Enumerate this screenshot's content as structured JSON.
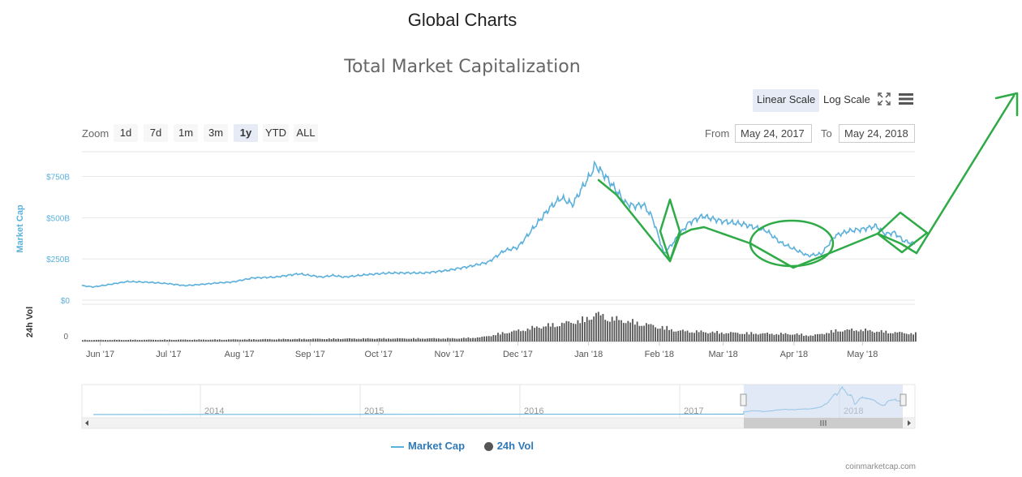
{
  "page": {
    "title": "Global Charts",
    "credits": "coinmarketcap.com"
  },
  "toolbar": {
    "linear_scale": "Linear Scale",
    "log_scale": "Log Scale",
    "zoom_label": "Zoom",
    "zoom_buttons": [
      "1d",
      "7d",
      "1m",
      "3m",
      "1y",
      "YTD",
      "ALL"
    ],
    "active_zoom": "1y",
    "from_label": "From",
    "from_value": "May 24, 2017",
    "to_label": "To",
    "to_value": "May 24, 2018"
  },
  "legend": {
    "market_cap": "Market Cap",
    "vol": "24h Vol"
  },
  "colors": {
    "market_cap": "#5bb0db",
    "volume": "#555555",
    "navigator_mask": "#c9d7ee",
    "annotation": "#2eaa47"
  },
  "chart_data": {
    "type": "line",
    "title": "Total Market Capitalization",
    "ylabel": "Market Cap",
    "ylabel_secondary": "24h Vol",
    "ylim": [
      0,
      900
    ],
    "y_ticks": [
      0,
      250,
      500,
      750
    ],
    "y_tick_labels": [
      "$0",
      "$250B",
      "$500B",
      "$750B"
    ],
    "vol_tick_labels": [
      "0"
    ],
    "x_ticks": [
      "Jun '17",
      "Jul '17",
      "Aug '17",
      "Sep '17",
      "Oct '17",
      "Nov '17",
      "Dec '17",
      "Jan '18",
      "Feb '18",
      "Mar '18",
      "Apr '18",
      "May '18"
    ],
    "x_tick_days": [
      8,
      38,
      69,
      100,
      130,
      161,
      191,
      222,
      253,
      281,
      312,
      342
    ],
    "series": [
      {
        "name": "Market Cap",
        "unit": "USD billions",
        "days": [
          0,
          5,
          12,
          20,
          30,
          38,
          45,
          52,
          60,
          66,
          75,
          85,
          95,
          105,
          110,
          115,
          125,
          135,
          150,
          160,
          170,
          178,
          185,
          191,
          198,
          205,
          210,
          215,
          220,
          222,
          225,
          230,
          235,
          238,
          242,
          246,
          250,
          253,
          255,
          258,
          262,
          266,
          272,
          280,
          290,
          300,
          306,
          312,
          318,
          324,
          330,
          336,
          342,
          348,
          352,
          356,
          360,
          365
        ],
        "values": [
          88,
          80,
          95,
          113,
          108,
          100,
          88,
          95,
          105,
          110,
          135,
          140,
          160,
          140,
          150,
          140,
          155,
          165,
          165,
          180,
          205,
          230,
          300,
          320,
          440,
          560,
          620,
          580,
          700,
          740,
          820,
          740,
          650,
          590,
          570,
          580,
          500,
          370,
          280,
          330,
          400,
          470,
          510,
          480,
          460,
          420,
          350,
          310,
          270,
          280,
          390,
          420,
          430,
          450,
          400,
          410,
          360,
          340
        ]
      },
      {
        "name": "24h Vol",
        "unit": "relative",
        "days": [
          0,
          60,
          120,
          165,
          175,
          185,
          191,
          200,
          210,
          220,
          225,
          230,
          240,
          250,
          255,
          260,
          270,
          280,
          300,
          312,
          320,
          330,
          340,
          350,
          365
        ],
        "values": [
          8,
          10,
          15,
          16,
          22,
          45,
          55,
          75,
          90,
          110,
          140,
          120,
          100,
          80,
          70,
          55,
          50,
          45,
          40,
          38,
          30,
          55,
          60,
          50,
          40
        ]
      }
    ],
    "navigator": {
      "x_ticks": [
        "2014",
        "2015",
        "2016",
        "2017",
        "2018"
      ]
    }
  }
}
